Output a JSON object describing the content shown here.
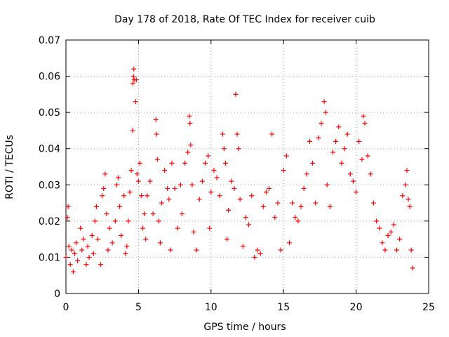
{
  "chart_data": {
    "type": "scatter",
    "title": "Day 178 of 2018, Rate Of TEC Index for receiver cuib",
    "xlabel": "GPS time / hours",
    "ylabel": "ROTI / TECUs",
    "xlim": [
      0,
      25
    ],
    "ylim": [
      0,
      0.07
    ],
    "xticks": [
      "0",
      "5",
      "10",
      "15",
      "20",
      "25"
    ],
    "yticks": [
      "0",
      "0.01",
      "0.02",
      "0.03",
      "0.04",
      "0.05",
      "0.06",
      "0.07"
    ],
    "grid": true,
    "marker": "+",
    "color": "#ff0000",
    "series": [
      {
        "points": [
          [
            0.0,
            0.01
          ],
          [
            0.1,
            0.021
          ],
          [
            0.15,
            0.024
          ],
          [
            0.2,
            0.013
          ],
          [
            0.3,
            0.008
          ],
          [
            0.4,
            0.012
          ],
          [
            0.5,
            0.006
          ],
          [
            0.6,
            0.011
          ],
          [
            0.7,
            0.014
          ],
          [
            0.8,
            0.009
          ],
          [
            1.0,
            0.018
          ],
          [
            1.1,
            0.012
          ],
          [
            1.2,
            0.015
          ],
          [
            1.4,
            0.008
          ],
          [
            1.5,
            0.013
          ],
          [
            1.6,
            0.01
          ],
          [
            1.8,
            0.016
          ],
          [
            1.9,
            0.011
          ],
          [
            2.0,
            0.02
          ],
          [
            2.1,
            0.024
          ],
          [
            2.2,
            0.015
          ],
          [
            2.4,
            0.008
          ],
          [
            2.5,
            0.027
          ],
          [
            2.6,
            0.029
          ],
          [
            2.7,
            0.033
          ],
          [
            2.8,
            0.022
          ],
          [
            2.9,
            0.012
          ],
          [
            3.0,
            0.018
          ],
          [
            3.2,
            0.014
          ],
          [
            3.4,
            0.02
          ],
          [
            3.5,
            0.03
          ],
          [
            3.6,
            0.032
          ],
          [
            3.7,
            0.024
          ],
          [
            3.8,
            0.016
          ],
          [
            4.0,
            0.027
          ],
          [
            4.1,
            0.011
          ],
          [
            4.2,
            0.013
          ],
          [
            4.3,
            0.02
          ],
          [
            4.4,
            0.028
          ],
          [
            4.5,
            0.034
          ],
          [
            4.6,
            0.045
          ],
          [
            4.62,
            0.058
          ],
          [
            4.65,
            0.06
          ],
          [
            4.68,
            0.062
          ],
          [
            4.7,
            0.059
          ],
          [
            4.8,
            0.053
          ],
          [
            4.85,
            0.059
          ],
          [
            4.9,
            0.033
          ],
          [
            5.0,
            0.031
          ],
          [
            5.1,
            0.036
          ],
          [
            5.2,
            0.027
          ],
          [
            5.3,
            0.018
          ],
          [
            5.4,
            0.022
          ],
          [
            5.5,
            0.015
          ],
          [
            5.6,
            0.027
          ],
          [
            5.8,
            0.031
          ],
          [
            6.0,
            0.022
          ],
          [
            6.2,
            0.048
          ],
          [
            6.25,
            0.044
          ],
          [
            6.3,
            0.037
          ],
          [
            6.4,
            0.02
          ],
          [
            6.5,
            0.014
          ],
          [
            6.6,
            0.025
          ],
          [
            6.8,
            0.034
          ],
          [
            7.0,
            0.029
          ],
          [
            7.1,
            0.026
          ],
          [
            7.2,
            0.012
          ],
          [
            7.3,
            0.036
          ],
          [
            7.5,
            0.029
          ],
          [
            7.7,
            0.018
          ],
          [
            7.9,
            0.03
          ],
          [
            8.0,
            0.022
          ],
          [
            8.2,
            0.036
          ],
          [
            8.4,
            0.039
          ],
          [
            8.5,
            0.049
          ],
          [
            8.55,
            0.047
          ],
          [
            8.6,
            0.041
          ],
          [
            8.7,
            0.03
          ],
          [
            8.8,
            0.017
          ],
          [
            9.0,
            0.012
          ],
          [
            9.2,
            0.026
          ],
          [
            9.4,
            0.031
          ],
          [
            9.6,
            0.036
          ],
          [
            9.8,
            0.038
          ],
          [
            9.9,
            0.018
          ],
          [
            10.0,
            0.028
          ],
          [
            10.2,
            0.034
          ],
          [
            10.4,
            0.032
          ],
          [
            10.6,
            0.027
          ],
          [
            10.8,
            0.044
          ],
          [
            10.9,
            0.04
          ],
          [
            11.0,
            0.036
          ],
          [
            11.1,
            0.015
          ],
          [
            11.2,
            0.023
          ],
          [
            11.4,
            0.031
          ],
          [
            11.6,
            0.029
          ],
          [
            11.7,
            0.055
          ],
          [
            11.8,
            0.044
          ],
          [
            11.9,
            0.04
          ],
          [
            12.0,
            0.026
          ],
          [
            12.2,
            0.013
          ],
          [
            12.4,
            0.021
          ],
          [
            12.6,
            0.019
          ],
          [
            12.8,
            0.027
          ],
          [
            13.0,
            0.01
          ],
          [
            13.2,
            0.012
          ],
          [
            13.4,
            0.011
          ],
          [
            13.6,
            0.024
          ],
          [
            13.8,
            0.028
          ],
          [
            14.0,
            0.029
          ],
          [
            14.2,
            0.044
          ],
          [
            14.4,
            0.021
          ],
          [
            14.6,
            0.025
          ],
          [
            14.8,
            0.012
          ],
          [
            15.0,
            0.034
          ],
          [
            15.2,
            0.038
          ],
          [
            15.4,
            0.014
          ],
          [
            15.6,
            0.025
          ],
          [
            15.8,
            0.021
          ],
          [
            16.0,
            0.02
          ],
          [
            16.2,
            0.024
          ],
          [
            16.4,
            0.029
          ],
          [
            16.6,
            0.033
          ],
          [
            16.8,
            0.042
          ],
          [
            17.0,
            0.036
          ],
          [
            17.2,
            0.025
          ],
          [
            17.4,
            0.043
          ],
          [
            17.6,
            0.047
          ],
          [
            17.8,
            0.053
          ],
          [
            17.9,
            0.05
          ],
          [
            18.0,
            0.03
          ],
          [
            18.2,
            0.024
          ],
          [
            18.4,
            0.039
          ],
          [
            18.6,
            0.042
          ],
          [
            18.8,
            0.046
          ],
          [
            19.0,
            0.036
          ],
          [
            19.2,
            0.04
          ],
          [
            19.4,
            0.044
          ],
          [
            19.6,
            0.033
          ],
          [
            19.8,
            0.031
          ],
          [
            20.0,
            0.028
          ],
          [
            20.2,
            0.042
          ],
          [
            20.4,
            0.037
          ],
          [
            20.5,
            0.049
          ],
          [
            20.6,
            0.047
          ],
          [
            20.8,
            0.038
          ],
          [
            21.0,
            0.033
          ],
          [
            21.2,
            0.025
          ],
          [
            21.4,
            0.02
          ],
          [
            21.6,
            0.018
          ],
          [
            21.8,
            0.014
          ],
          [
            22.0,
            0.012
          ],
          [
            22.2,
            0.016
          ],
          [
            22.4,
            0.017
          ],
          [
            22.6,
            0.019
          ],
          [
            22.8,
            0.012
          ],
          [
            23.0,
            0.015
          ],
          [
            23.2,
            0.027
          ],
          [
            23.4,
            0.03
          ],
          [
            23.5,
            0.034
          ],
          [
            23.6,
            0.026
          ],
          [
            23.7,
            0.024
          ],
          [
            23.8,
            0.012
          ],
          [
            23.9,
            0.007
          ]
        ]
      }
    ]
  }
}
